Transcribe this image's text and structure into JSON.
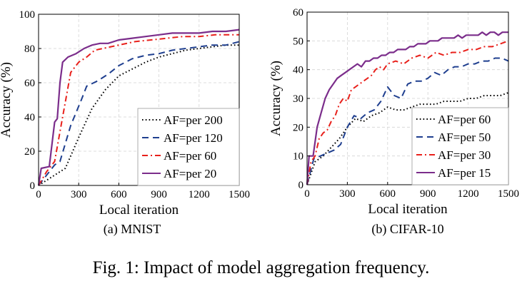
{
  "figure": {
    "caption": "Fig. 1: Impact of model aggregation frequency."
  },
  "chart_data": [
    {
      "type": "line",
      "subtitle": "(a) MNIST",
      "xlabel": "Local iteration",
      "ylabel": "Accuracy (%)",
      "xlim": [
        0,
        1500
      ],
      "ylim": [
        0,
        100
      ],
      "xticks": [
        "0",
        "300",
        "600",
        "900",
        "1200",
        "1500"
      ],
      "yticks": [
        "0",
        "20",
        "40",
        "60",
        "80",
        "100"
      ],
      "grid": true,
      "legend": "bottom-right",
      "series": [
        {
          "name": "AF=per 200",
          "color": "#000000",
          "dash": "dot",
          "points": [
            [
              0,
              0
            ],
            [
              100,
              5
            ],
            [
              200,
              10
            ],
            [
              300,
              28
            ],
            [
              400,
              45
            ],
            [
              500,
              56
            ],
            [
              600,
              64
            ],
            [
              700,
              68
            ],
            [
              800,
              72
            ],
            [
              900,
              75
            ],
            [
              1000,
              77
            ],
            [
              1100,
              79
            ],
            [
              1200,
              80
            ],
            [
              1300,
              81
            ],
            [
              1400,
              82
            ],
            [
              1500,
              82
            ]
          ]
        },
        {
          "name": "AF=per 120",
          "color": "#1f3f8f",
          "dash": "dash",
          "points": [
            [
              0,
              0
            ],
            [
              120,
              12
            ],
            [
              160,
              14
            ],
            [
              240,
              35
            ],
            [
              320,
              50
            ],
            [
              360,
              58
            ],
            [
              440,
              61
            ],
            [
              520,
              65
            ],
            [
              600,
              70
            ],
            [
              700,
              74
            ],
            [
              800,
              76
            ],
            [
              900,
              77
            ],
            [
              1000,
              79
            ],
            [
              1100,
              80
            ],
            [
              1200,
              81
            ],
            [
              1300,
              82
            ],
            [
              1400,
              82
            ],
            [
              1500,
              84
            ]
          ]
        },
        {
          "name": "AF=per 60",
          "color": "#e8201b",
          "dash": "dashdot",
          "points": [
            [
              0,
              0
            ],
            [
              60,
              8
            ],
            [
              120,
              14
            ],
            [
              180,
              40
            ],
            [
              240,
              66
            ],
            [
              300,
              72
            ],
            [
              360,
              75
            ],
            [
              420,
              79
            ],
            [
              480,
              80
            ],
            [
              600,
              82
            ],
            [
              720,
              84
            ],
            [
              840,
              85
            ],
            [
              960,
              86
            ],
            [
              1080,
              87
            ],
            [
              1200,
              87
            ],
            [
              1320,
              88
            ],
            [
              1440,
              88
            ],
            [
              1500,
              88
            ]
          ]
        },
        {
          "name": "AF=per 20",
          "color": "#7b2d8b",
          "dash": "solid",
          "points": [
            [
              0,
              0
            ],
            [
              20,
              10
            ],
            [
              80,
              11
            ],
            [
              120,
              37
            ],
            [
              140,
              39
            ],
            [
              160,
              60
            ],
            [
              180,
              72
            ],
            [
              220,
              75
            ],
            [
              280,
              77
            ],
            [
              340,
              80
            ],
            [
              400,
              82
            ],
            [
              460,
              83
            ],
            [
              520,
              83
            ],
            [
              600,
              85
            ],
            [
              700,
              86
            ],
            [
              800,
              87
            ],
            [
              900,
              88
            ],
            [
              1000,
              89
            ],
            [
              1100,
              89
            ],
            [
              1200,
              89
            ],
            [
              1300,
              90
            ],
            [
              1400,
              90
            ],
            [
              1500,
              91
            ]
          ]
        }
      ]
    },
    {
      "type": "line",
      "subtitle": "(b) CIFAR-10",
      "xlabel": "Local iteration",
      "ylabel": "Accuracy (%)",
      "xlim": [
        0,
        1500
      ],
      "ylim": [
        0,
        60
      ],
      "xticks": [
        "0",
        "300",
        "600",
        "900",
        "1200",
        "1500"
      ],
      "yticks": [
        "0",
        "10",
        "20",
        "30",
        "40",
        "50",
        "60"
      ],
      "grid": true,
      "legend": "bottom-right",
      "series": [
        {
          "name": "AF=per 60",
          "color": "#000000",
          "dash": "dot",
          "points": [
            [
              0,
              0
            ],
            [
              60,
              8
            ],
            [
              120,
              10
            ],
            [
              180,
              13
            ],
            [
              240,
              16
            ],
            [
              300,
              20
            ],
            [
              360,
              23
            ],
            [
              420,
              22
            ],
            [
              480,
              24
            ],
            [
              540,
              25
            ],
            [
              600,
              27
            ],
            [
              660,
              26
            ],
            [
              720,
              26
            ],
            [
              780,
              27
            ],
            [
              840,
              28
            ],
            [
              900,
              28
            ],
            [
              960,
              28
            ],
            [
              1020,
              29
            ],
            [
              1080,
              29
            ],
            [
              1140,
              29
            ],
            [
              1200,
              30
            ],
            [
              1260,
              30
            ],
            [
              1320,
              31
            ],
            [
              1380,
              31
            ],
            [
              1440,
              31
            ],
            [
              1500,
              32
            ]
          ]
        },
        {
          "name": "AF=per 50",
          "color": "#1f3f8f",
          "dash": "dash",
          "points": [
            [
              0,
              0
            ],
            [
              50,
              9
            ],
            [
              100,
              10
            ],
            [
              150,
              11
            ],
            [
              200,
              12
            ],
            [
              250,
              14
            ],
            [
              300,
              20
            ],
            [
              350,
              24
            ],
            [
              400,
              23
            ],
            [
              450,
              25
            ],
            [
              500,
              26
            ],
            [
              550,
              29
            ],
            [
              600,
              34
            ],
            [
              650,
              31
            ],
            [
              700,
              30
            ],
            [
              750,
              35
            ],
            [
              800,
              36
            ],
            [
              850,
              36
            ],
            [
              900,
              37
            ],
            [
              950,
              39
            ],
            [
              1000,
              38
            ],
            [
              1050,
              40
            ],
            [
              1100,
              41
            ],
            [
              1150,
              41
            ],
            [
              1200,
              42
            ],
            [
              1250,
              42
            ],
            [
              1300,
              43
            ],
            [
              1350,
              43
            ],
            [
              1400,
              44
            ],
            [
              1450,
              44
            ],
            [
              1500,
              43
            ]
          ]
        },
        {
          "name": "AF=per 30",
          "color": "#e8201b",
          "dash": "dashdot",
          "points": [
            [
              0,
              0
            ],
            [
              30,
              8
            ],
            [
              60,
              10
            ],
            [
              90,
              16
            ],
            [
              120,
              18
            ],
            [
              150,
              19
            ],
            [
              180,
              22
            ],
            [
              210,
              24
            ],
            [
              240,
              28
            ],
            [
              270,
              30
            ],
            [
              300,
              29
            ],
            [
              330,
              33
            ],
            [
              360,
              34
            ],
            [
              390,
              35
            ],
            [
              420,
              36
            ],
            [
              450,
              37
            ],
            [
              480,
              38
            ],
            [
              510,
              40
            ],
            [
              540,
              41
            ],
            [
              570,
              40
            ],
            [
              600,
              42
            ],
            [
              660,
              43
            ],
            [
              720,
              42
            ],
            [
              780,
              44
            ],
            [
              840,
              45
            ],
            [
              900,
              44
            ],
            [
              960,
              46
            ],
            [
              1020,
              45
            ],
            [
              1080,
              46
            ],
            [
              1140,
              46
            ],
            [
              1200,
              47
            ],
            [
              1260,
              47
            ],
            [
              1320,
              48
            ],
            [
              1380,
              48
            ],
            [
              1440,
              49
            ],
            [
              1500,
              50
            ]
          ]
        },
        {
          "name": "AF=per 15",
          "color": "#7b2d8b",
          "dash": "solid",
          "points": [
            [
              0,
              0
            ],
            [
              15,
              10
            ],
            [
              45,
              10
            ],
            [
              75,
              20
            ],
            [
              105,
              25
            ],
            [
              135,
              30
            ],
            [
              165,
              33
            ],
            [
              195,
              35
            ],
            [
              225,
              37
            ],
            [
              255,
              38
            ],
            [
              285,
              39
            ],
            [
              315,
              40
            ],
            [
              345,
              41
            ],
            [
              375,
              42
            ],
            [
              405,
              41
            ],
            [
              435,
              43
            ],
            [
              465,
              43
            ],
            [
              495,
              44
            ],
            [
              525,
              44
            ],
            [
              555,
              45
            ],
            [
              585,
              45
            ],
            [
              615,
              46
            ],
            [
              645,
              46
            ],
            [
              675,
              47
            ],
            [
              705,
              47
            ],
            [
              735,
              47
            ],
            [
              765,
              48
            ],
            [
              795,
              48
            ],
            [
              825,
              49
            ],
            [
              855,
              49
            ],
            [
              885,
              49
            ],
            [
              915,
              50
            ],
            [
              945,
              50
            ],
            [
              975,
              50
            ],
            [
              1005,
              51
            ],
            [
              1035,
              51
            ],
            [
              1065,
              51
            ],
            [
              1095,
              51
            ],
            [
              1125,
              52
            ],
            [
              1155,
              51
            ],
            [
              1185,
              52
            ],
            [
              1215,
              52
            ],
            [
              1245,
              52
            ],
            [
              1275,
              52
            ],
            [
              1305,
              53
            ],
            [
              1335,
              52
            ],
            [
              1365,
              53
            ],
            [
              1395,
              53
            ],
            [
              1425,
              52
            ],
            [
              1455,
              53
            ],
            [
              1485,
              53
            ],
            [
              1500,
              53
            ]
          ]
        }
      ]
    }
  ]
}
